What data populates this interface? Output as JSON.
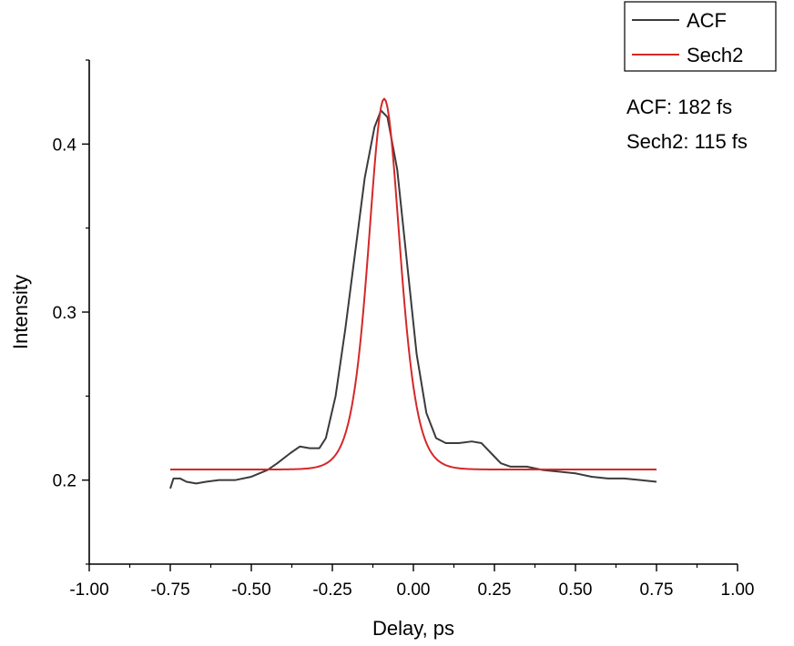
{
  "chart_data": {
    "type": "line",
    "title": "",
    "xlabel": "Delay, ps",
    "ylabel": "Intensity",
    "xlim": [
      -1.0,
      1.0
    ],
    "ylim": [
      0.15,
      0.45
    ],
    "x_tick_labels": [
      "-1.00",
      "-0.75",
      "-0.50",
      "-0.25",
      "0.00",
      "0.25",
      "0.50",
      "0.75",
      "1.00"
    ],
    "y_tick_labels": [
      "0.2",
      "0.3",
      "0.4"
    ],
    "legend": {
      "placement": "top-right",
      "entries": [
        "ACF",
        "Sech2"
      ]
    },
    "annotations": [
      "ACF: 182 fs",
      "Sech2: 115 fs"
    ],
    "grid": false,
    "series": [
      {
        "name": "ACF",
        "color": "#3b3b3b",
        "points": [
          [
            -0.75,
            0.195
          ],
          [
            -0.74,
            0.201
          ],
          [
            -0.72,
            0.201
          ],
          [
            -0.7,
            0.199
          ],
          [
            -0.67,
            0.198
          ],
          [
            -0.64,
            0.199
          ],
          [
            -0.6,
            0.2
          ],
          [
            -0.55,
            0.2
          ],
          [
            -0.5,
            0.202
          ],
          [
            -0.45,
            0.206
          ],
          [
            -0.42,
            0.21
          ],
          [
            -0.38,
            0.216
          ],
          [
            -0.35,
            0.22
          ],
          [
            -0.32,
            0.219
          ],
          [
            -0.29,
            0.219
          ],
          [
            -0.27,
            0.225
          ],
          [
            -0.24,
            0.25
          ],
          [
            -0.21,
            0.29
          ],
          [
            -0.18,
            0.335
          ],
          [
            -0.15,
            0.38
          ],
          [
            -0.12,
            0.41
          ],
          [
            -0.1,
            0.42
          ],
          [
            -0.08,
            0.416
          ],
          [
            -0.05,
            0.385
          ],
          [
            -0.02,
            0.33
          ],
          [
            0.01,
            0.275
          ],
          [
            0.04,
            0.24
          ],
          [
            0.07,
            0.225
          ],
          [
            0.1,
            0.222
          ],
          [
            0.14,
            0.222
          ],
          [
            0.18,
            0.223
          ],
          [
            0.21,
            0.222
          ],
          [
            0.24,
            0.216
          ],
          [
            0.27,
            0.21
          ],
          [
            0.3,
            0.208
          ],
          [
            0.35,
            0.208
          ],
          [
            0.4,
            0.206
          ],
          [
            0.45,
            0.205
          ],
          [
            0.5,
            0.204
          ],
          [
            0.55,
            0.202
          ],
          [
            0.6,
            0.201
          ],
          [
            0.65,
            0.201
          ],
          [
            0.7,
            0.2
          ],
          [
            0.75,
            0.199
          ]
        ]
      },
      {
        "name": "Sech2",
        "color": "#d62728",
        "baseline": 0.2063,
        "amplitude": 0.2207,
        "center": -0.09,
        "fwhm": 0.115,
        "x_range": [
          -0.75,
          0.75
        ]
      }
    ]
  }
}
